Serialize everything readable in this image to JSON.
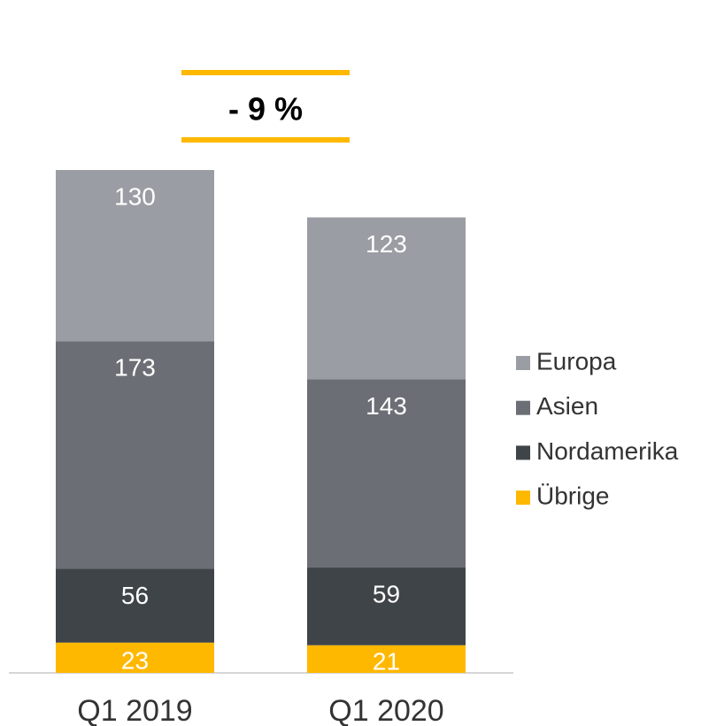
{
  "chart_data": {
    "type": "stacked_bar",
    "annotation": "- 9 %",
    "categories": [
      "Q1 2019",
      "Q1 2020"
    ],
    "series": [
      {
        "name": "Übrige",
        "color": "#ffb800",
        "values": [
          23,
          21
        ]
      },
      {
        "name": "Nordamerika",
        "color": "#3f4449",
        "values": [
          56,
          59
        ]
      },
      {
        "name": "Asien",
        "color": "#6b6e74",
        "values": [
          173,
          143
        ]
      },
      {
        "name": "Europa",
        "color": "#9a9da3",
        "values": [
          130,
          123
        ]
      }
    ],
    "legend": "right"
  }
}
